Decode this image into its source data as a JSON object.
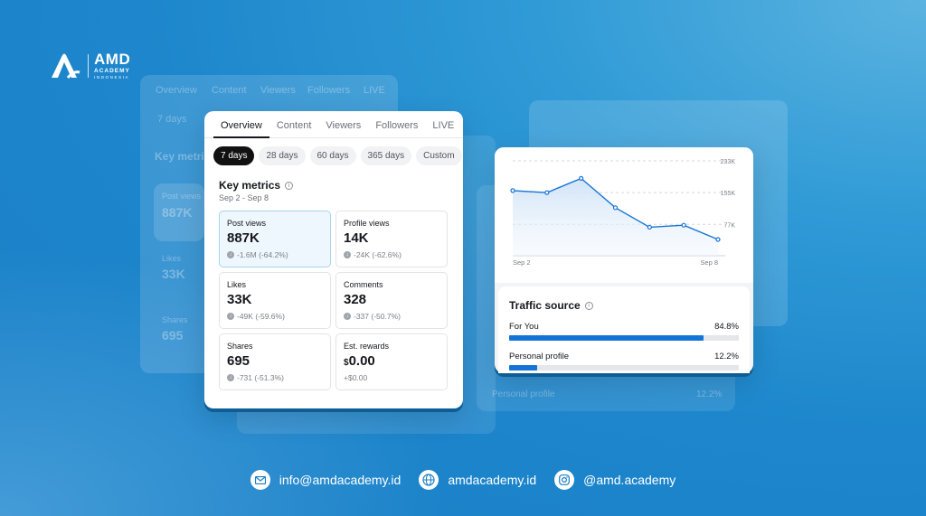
{
  "brand": {
    "name": "AMD",
    "line2": "ACADEMY",
    "line3": "INDONESIA"
  },
  "tabs": [
    "Overview",
    "Content",
    "Viewers",
    "Followers",
    "LIVE"
  ],
  "chips": [
    "7 days",
    "28 days",
    "60 days",
    "365 days",
    "Custom"
  ],
  "key_metrics": {
    "title": "Key metrics",
    "date_range": "Sep 2 - Sep 8",
    "items": [
      {
        "label": "Post views",
        "value": "887K",
        "change": "-1.6M (-64.2%)"
      },
      {
        "label": "Profile views",
        "value": "14K",
        "change": "-24K (-62.6%)"
      },
      {
        "label": "Likes",
        "value": "33K",
        "change": "-49K (-59.6%)"
      },
      {
        "label": "Comments",
        "value": "328",
        "change": "-337 (-50.7%)"
      },
      {
        "label": "Shares",
        "value": "695",
        "change": "-731 (-51.3%)"
      },
      {
        "label": "Est. rewards",
        "currency": "$",
        "value": "0.00",
        "change": "+$0.00"
      }
    ]
  },
  "chart_data": {
    "type": "area",
    "x_labels": [
      "Sep 2",
      "Sep 8"
    ],
    "y_ticks": [
      "233K",
      "155K",
      "77K"
    ],
    "y_tick_values": [
      233000,
      155000,
      77000
    ],
    "ylim": [
      0,
      233000
    ],
    "values": [
      160000,
      155000,
      190000,
      118000,
      70000,
      75000,
      40000
    ],
    "color": "#1473d6"
  },
  "traffic": {
    "title": "Traffic source",
    "rows": [
      {
        "label": "For You",
        "value": "84.8%",
        "fraction": 0.848
      },
      {
        "label": "Personal profile",
        "value": "12.2%",
        "fraction": 0.122
      }
    ]
  },
  "ghost": {
    "tabs": [
      "Overview",
      "Content",
      "Viewers",
      "Followers",
      "LIVE"
    ],
    "chip": "7 days",
    "title": "Key metri",
    "labels": [
      "Post views",
      "Likes",
      "Shares"
    ],
    "values": [
      "887K",
      "33K",
      "695"
    ],
    "traffic_label": "Personal profile",
    "traffic_value": "12.2%"
  },
  "footer": {
    "email": "info@amdacademy.id",
    "website": "amdacademy.id",
    "instagram": "@amd.academy"
  }
}
